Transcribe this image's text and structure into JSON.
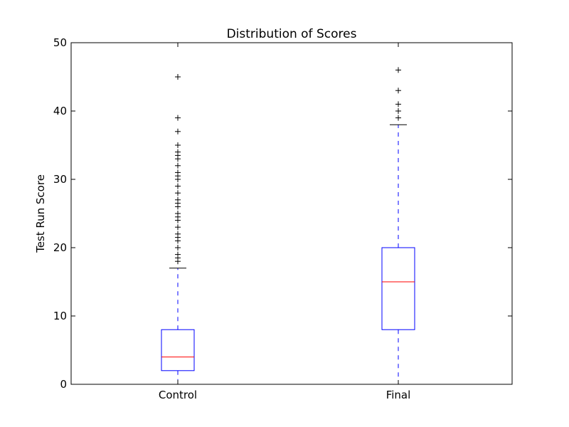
{
  "chart_data": {
    "type": "box",
    "title": "Distribution of Scores",
    "xlabel": "",
    "ylabel": "Test Run Score",
    "ylim": [
      0,
      50
    ],
    "yticks": [
      0,
      10,
      20,
      30,
      40,
      50
    ],
    "grid": false,
    "colors": {
      "box": "#0000ff",
      "median": "#ff0000",
      "whisker": "#0000ff",
      "cap": "#000000",
      "flier": "#000000"
    },
    "categories": [
      "Control",
      "Final"
    ],
    "boxes": [
      {
        "name": "Control",
        "whisker_low": 0,
        "q1": 2,
        "median": 4,
        "q3": 8,
        "whisker_high": 17,
        "fliers": [
          18,
          18.5,
          19,
          20,
          21,
          21.5,
          22,
          23,
          24,
          24.5,
          25,
          26,
          26.5,
          27,
          28,
          29,
          30,
          30.5,
          31,
          32,
          33,
          33.5,
          34,
          35,
          37,
          39,
          45
        ]
      },
      {
        "name": "Final",
        "whisker_low": 0,
        "q1": 8,
        "median": 15,
        "q3": 20,
        "whisker_high": 38,
        "fliers": [
          39,
          40,
          41,
          43,
          46
        ]
      }
    ]
  }
}
